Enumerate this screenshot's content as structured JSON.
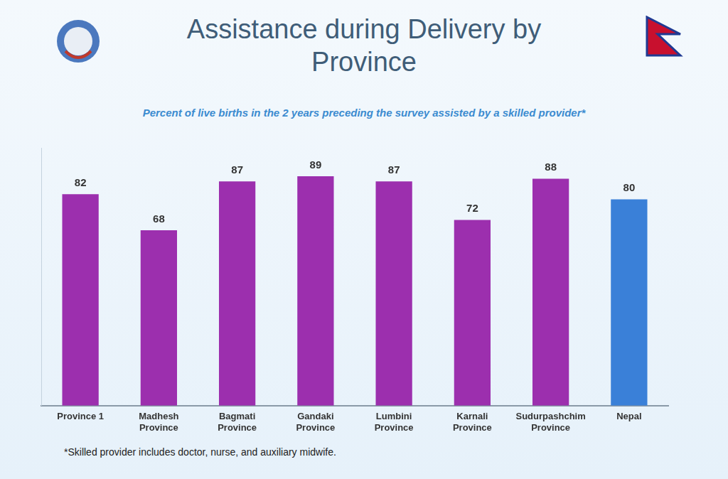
{
  "chart_data": {
    "type": "bar",
    "title": "Assistance during Delivery by Province",
    "subtitle": "Percent of live births in the 2 years preceding the survey assisted by a skilled provider*",
    "annotations": [
      "*Skilled provider includes doctor, nurse, and auxiliary midwife."
    ],
    "categories": [
      "Province 1",
      "Madhesh Province",
      "Bagmati Province",
      "Gandaki Province",
      "Lumbini Province",
      "Karnali Province",
      "Sudurpashchim Province",
      "Nepal"
    ],
    "values": [
      82,
      68,
      87,
      89,
      87,
      72,
      88,
      80
    ],
    "colors": [
      "#9c2fae",
      "#9c2fae",
      "#9c2fae",
      "#9c2fae",
      "#9c2fae",
      "#9c2fae",
      "#9c2fae",
      "#3a80d8"
    ],
    "ylim": [
      0,
      100
    ],
    "grid": false,
    "data_labels": true,
    "tick_labels": "x"
  }
}
